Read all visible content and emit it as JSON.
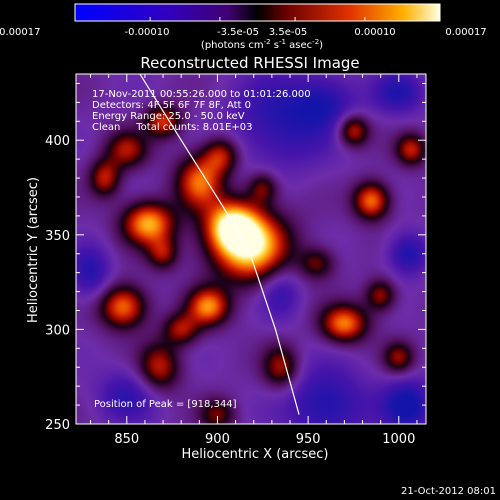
{
  "chart_data": {
    "type": "heatmap",
    "title": "Reconstructed RHESSI Image",
    "colorbar": {
      "ticks": [
        "-0.00017",
        "-0.00010",
        "-3.5e-05",
        "3.5e-05",
        "0.00010",
        "0.00017"
      ],
      "unit_main": "(photons cm",
      "unit_exp1": "-2",
      "unit_s": " s",
      "unit_exp2": "-1",
      "unit_asec": " asec",
      "unit_end": ")",
      "range": [
        -0.00017,
        0.00017
      ]
    },
    "xlabel": "Heliocentric X (arcsec)",
    "ylabel": "Heliocentric Y (arcsec)",
    "xlim": [
      822,
      1015
    ],
    "ylim": [
      250,
      435
    ],
    "xticks": [
      850,
      900,
      950,
      1000
    ],
    "yticks": [
      250,
      300,
      350,
      400
    ],
    "annotations": [
      "17-Nov-2011 00:55:26.000 to 01:01:26.000",
      "Detectors: 4F 5F 6F 7F 8F, Att 0",
      "Energy Range: 25.0 - 50.0 keV",
      "Clean     Total counts: 8.01E+03"
    ],
    "peak_label": "Position of Peak = [918,344]",
    "peak": [
      918,
      344
    ],
    "limb_curve": [
      [
        854,
        440
      ],
      [
        880,
        400
      ],
      [
        903,
        365
      ],
      [
        918,
        340
      ],
      [
        932,
        300
      ],
      [
        945,
        255
      ]
    ],
    "sources": [
      {
        "x": 918,
        "y": 344,
        "amp": 1.0,
        "sx": 15,
        "sy": 13
      },
      {
        "x": 908,
        "y": 355,
        "amp": 0.8,
        "sx": 10,
        "sy": 9
      },
      {
        "x": 862,
        "y": 356,
        "amp": 0.85,
        "sx": 10,
        "sy": 8
      },
      {
        "x": 890,
        "y": 378,
        "amp": 0.7,
        "sx": 9,
        "sy": 10
      },
      {
        "x": 902,
        "y": 392,
        "amp": 0.55,
        "sx": 7,
        "sy": 7
      },
      {
        "x": 850,
        "y": 395,
        "amp": 0.5,
        "sx": 8,
        "sy": 7
      },
      {
        "x": 870,
        "y": 410,
        "amp": 0.6,
        "sx": 7,
        "sy": 6
      },
      {
        "x": 848,
        "y": 312,
        "amp": 0.75,
        "sx": 9,
        "sy": 8
      },
      {
        "x": 895,
        "y": 312,
        "amp": 0.75,
        "sx": 8,
        "sy": 7
      },
      {
        "x": 868,
        "y": 280,
        "amp": 0.55,
        "sx": 8,
        "sy": 9
      },
      {
        "x": 935,
        "y": 280,
        "amp": 0.5,
        "sx": 7,
        "sy": 8
      },
      {
        "x": 970,
        "y": 303,
        "amp": 0.75,
        "sx": 9,
        "sy": 7
      },
      {
        "x": 990,
        "y": 318,
        "amp": 0.5,
        "sx": 6,
        "sy": 6
      },
      {
        "x": 985,
        "y": 368,
        "amp": 0.75,
        "sx": 7,
        "sy": 7
      },
      {
        "x": 975,
        "y": 405,
        "amp": 0.6,
        "sx": 6,
        "sy": 6
      },
      {
        "x": 1007,
        "y": 395,
        "amp": 0.55,
        "sx": 6,
        "sy": 6
      },
      {
        "x": 955,
        "y": 335,
        "amp": 0.4,
        "sx": 7,
        "sy": 6
      },
      {
        "x": 1000,
        "y": 285,
        "amp": 0.45,
        "sx": 6,
        "sy": 6
      },
      {
        "x": 925,
        "y": 375,
        "amp": 0.45,
        "sx": 6,
        "sy": 6
      },
      {
        "x": 838,
        "y": 380,
        "amp": 0.55,
        "sx": 6,
        "sy": 7
      },
      {
        "x": 880,
        "y": 300,
        "amp": 0.5,
        "sx": 7,
        "sy": 6
      },
      {
        "x": 900,
        "y": 255,
        "amp": 0.4,
        "sx": 7,
        "sy": 6
      },
      {
        "x": 870,
        "y": 340,
        "amp": 0.45,
        "sx": 6,
        "sy": 6
      },
      {
        "x": 935,
        "y": 410,
        "amp": -0.35,
        "sx": 20,
        "sy": 18
      },
      {
        "x": 960,
        "y": 260,
        "amp": -0.4,
        "sx": 16,
        "sy": 14
      },
      {
        "x": 1005,
        "y": 260,
        "amp": -0.45,
        "sx": 10,
        "sy": 10
      },
      {
        "x": 850,
        "y": 265,
        "amp": -0.3,
        "sx": 12,
        "sy": 10
      },
      {
        "x": 935,
        "y": 320,
        "amp": -0.3,
        "sx": 8,
        "sy": 10
      },
      {
        "x": 1005,
        "y": 340,
        "amp": -0.4,
        "sx": 8,
        "sy": 8
      },
      {
        "x": 830,
        "y": 330,
        "amp": -0.35,
        "sx": 8,
        "sy": 10
      },
      {
        "x": 960,
        "y": 420,
        "amp": -0.3,
        "sx": 12,
        "sy": 10
      },
      {
        "x": 1000,
        "y": 425,
        "amp": -0.35,
        "sx": 10,
        "sy": 8
      }
    ]
  },
  "footer_timestamp": "21-Oct-2012 08:01"
}
